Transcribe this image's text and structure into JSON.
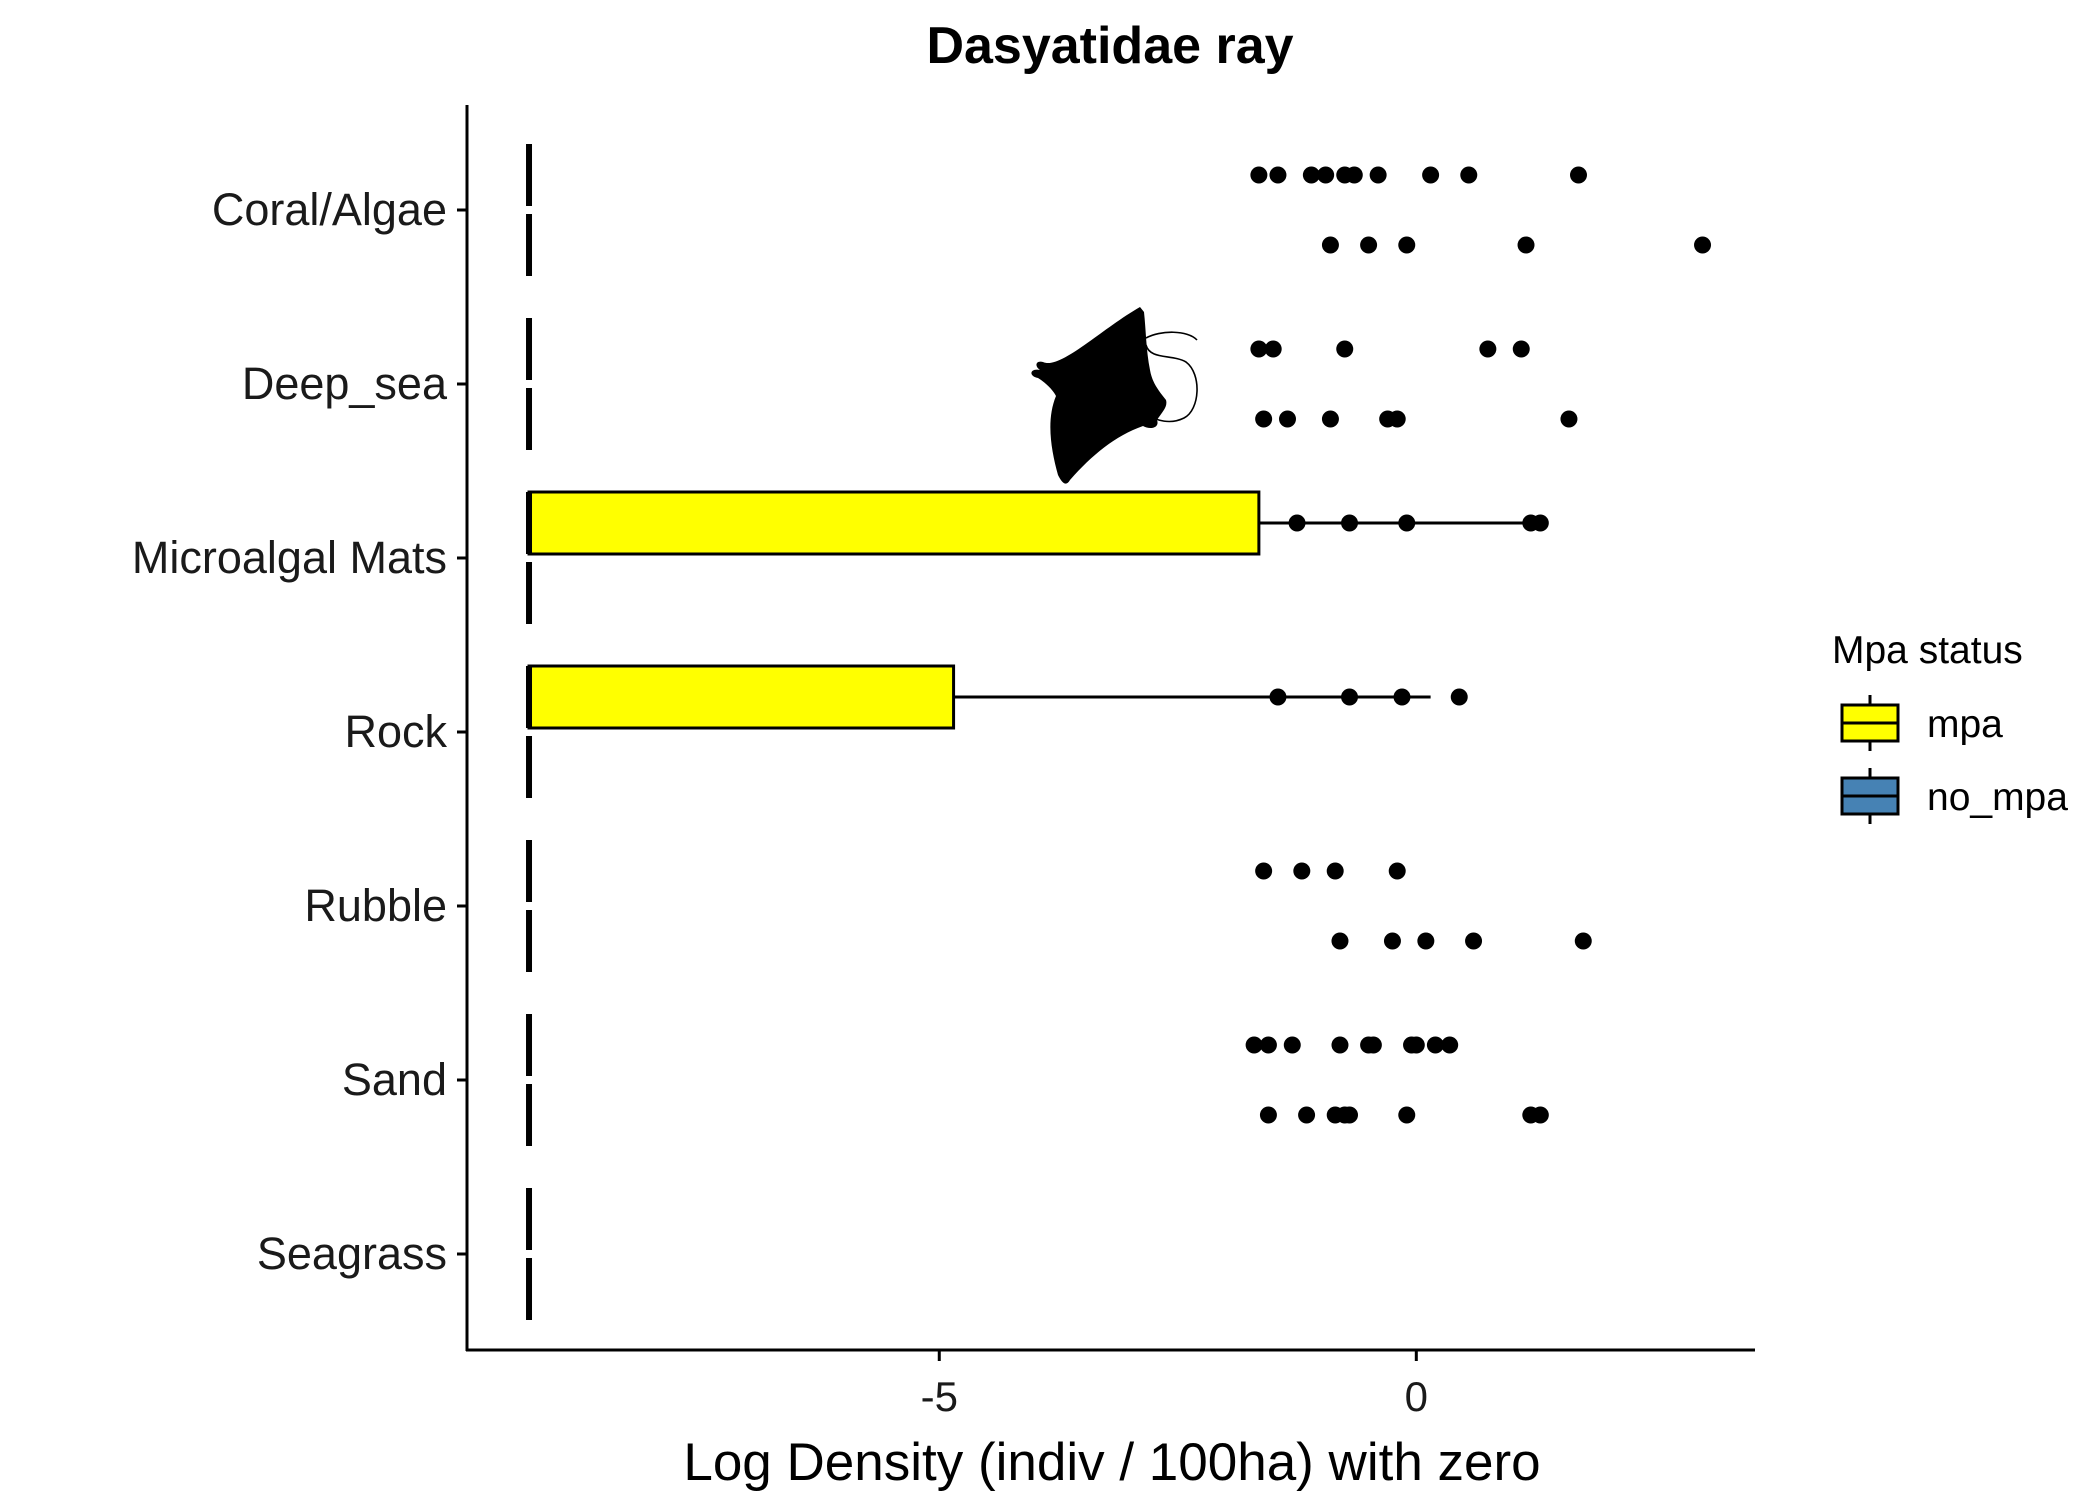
{
  "chart_data": {
    "type": "bar",
    "orientation": "horizontal",
    "title": "Dasyatidae ray",
    "xlabel": "Log Density (indiv / 100ha) with zero",
    "ylabel": "",
    "xlim": [
      -9.95,
      3.55
    ],
    "x_ticks": [
      {
        "value": -5,
        "label": "-5"
      },
      {
        "value": 0,
        "label": "0"
      }
    ],
    "categories": [
      "Coral/Algae",
      "Deep_sea",
      "Microalgal Mats",
      "Rock",
      "Rubble",
      "Sand",
      "Seagrass"
    ],
    "baseline_value": -9.3,
    "grid": false,
    "legend": {
      "title": "Mpa status",
      "position": "right",
      "entries": [
        {
          "label": "mpa",
          "color": "#ffff00"
        },
        {
          "label": "no_mpa",
          "color": "#4682b4"
        }
      ]
    },
    "series": [
      {
        "name": "mpa",
        "color": "#ffff00",
        "boxes": [
          {
            "category": "Microalgal Mats",
            "q3": -1.65,
            "whisker_high": 1.25
          },
          {
            "category": "Rock",
            "q3": -4.85,
            "whisker_high": 0.15
          }
        ],
        "outliers": [
          {
            "category": "Coral/Algae",
            "values": [
              -1.65,
              -1.45,
              -1.1,
              -0.95,
              -0.75,
              -0.65,
              -0.4,
              0.15,
              0.55,
              1.7
            ]
          },
          {
            "category": "Deep_sea",
            "values": [
              -1.65,
              -1.5,
              -0.75,
              0.75,
              1.1
            ]
          },
          {
            "category": "Microalgal Mats",
            "values": [
              -1.25,
              -0.7,
              -0.1,
              1.2,
              1.3
            ]
          },
          {
            "category": "Rock",
            "values": [
              -1.45,
              -0.7,
              -0.15,
              0.45
            ]
          },
          {
            "category": "Rubble",
            "values": [
              -1.6,
              -1.2,
              -0.85,
              -0.2
            ]
          },
          {
            "category": "Sand",
            "values": [
              -1.7,
              -1.55,
              -1.3,
              -0.8,
              -0.5,
              -0.45,
              -0.05,
              0.0,
              0.2,
              0.35
            ]
          }
        ]
      },
      {
        "name": "no_mpa",
        "color": "#4682b4",
        "boxes": [],
        "outliers": [
          {
            "category": "Coral/Algae",
            "values": [
              -0.9,
              -0.5,
              -0.1,
              1.15,
              3.0
            ]
          },
          {
            "category": "Deep_sea",
            "values": [
              -1.6,
              -1.35,
              -0.9,
              -0.3,
              -0.2,
              1.6
            ]
          },
          {
            "category": "Rubble",
            "values": [
              -0.8,
              -0.25,
              0.1,
              0.6,
              1.75
            ]
          },
          {
            "category": "Sand",
            "values": [
              -1.55,
              -1.15,
              -0.85,
              -0.75,
              -0.7,
              -0.1,
              1.2,
              1.3
            ]
          }
        ]
      }
    ]
  },
  "silhouette": {
    "name": "ray-silhouette"
  }
}
